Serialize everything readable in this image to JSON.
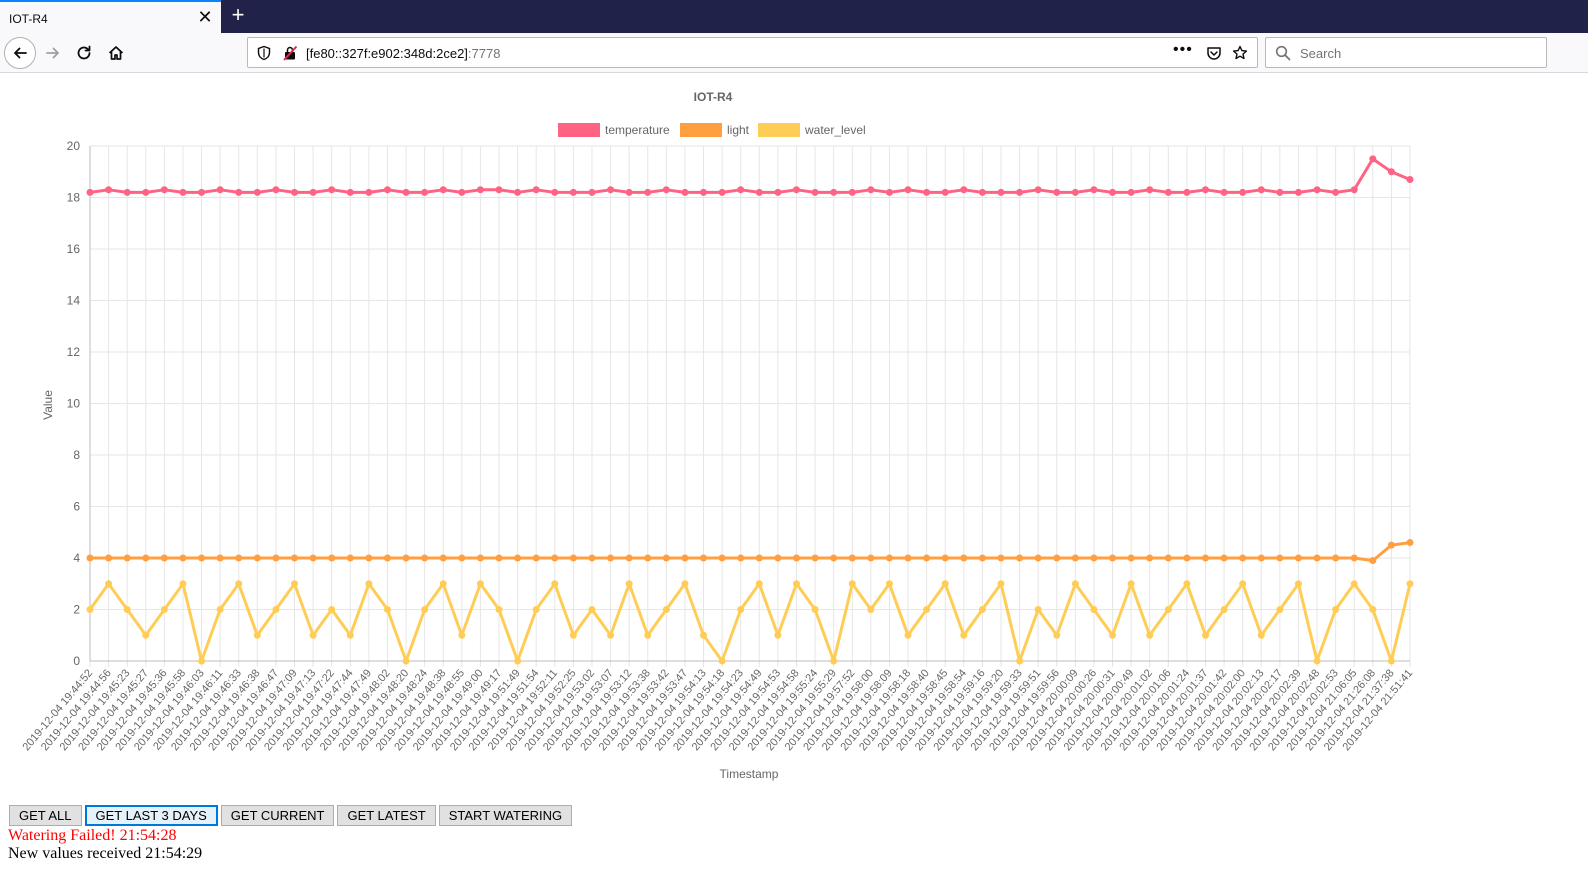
{
  "browser": {
    "tab_title": "IOT-R4",
    "tab_close": "✕",
    "new_tab": "+",
    "url_host": "[fe80::327f:e902:348d:2ce2]",
    "url_port": ":7778",
    "url_more": "•••",
    "search_placeholder": "Search"
  },
  "colors": {
    "temperature": "#ff6384",
    "light": "#ff9f40",
    "water_level": "#ffcd56"
  },
  "buttons": {
    "get_all": "GET ALL",
    "get_last_3_days": "GET LAST 3 DAYS",
    "get_current": "GET CURRENT",
    "get_latest": "GET LATEST",
    "start_watering": "START WATERING"
  },
  "status": {
    "watering": "Watering Failed! 21:54:28",
    "values": "New values received 21:54:29"
  },
  "chart_data": {
    "type": "line",
    "title": "IOT-R4",
    "xlabel": "Timestamp",
    "ylabel": "Value",
    "ylim": [
      0,
      20
    ],
    "y_ticks": [
      0,
      2,
      4,
      6,
      8,
      10,
      12,
      14,
      16,
      18,
      20
    ],
    "grid": true,
    "legend_position": "top-center",
    "categories": [
      "2019-12-04 19:44:52",
      "2019-12-04 19:44:56",
      "2019-12-04 19:45:23",
      "2019-12-04 19:45:27",
      "2019-12-04 19:45:36",
      "2019-12-04 19:45:58",
      "2019-12-04 19:46:03",
      "2019-12-04 19:46:11",
      "2019-12-04 19:46:33",
      "2019-12-04 19:46:38",
      "2019-12-04 19:46:47",
      "2019-12-04 19:47:09",
      "2019-12-04 19:47:13",
      "2019-12-04 19:47:22",
      "2019-12-04 19:47:44",
      "2019-12-04 19:47:49",
      "2019-12-04 19:48:02",
      "2019-12-04 19:48:20",
      "2019-12-04 19:48:24",
      "2019-12-04 19:48:38",
      "2019-12-04 19:48:55",
      "2019-12-04 19:49:00",
      "2019-12-04 19:49:17",
      "2019-12-04 19:51:49",
      "2019-12-04 19:51:54",
      "2019-12-04 19:52:11",
      "2019-12-04 19:52:25",
      "2019-12-04 19:53:02",
      "2019-12-04 19:53:07",
      "2019-12-04 19:53:12",
      "2019-12-04 19:53:38",
      "2019-12-04 19:53:42",
      "2019-12-04 19:53:47",
      "2019-12-04 19:54:13",
      "2019-12-04 19:54:18",
      "2019-12-04 19:54:23",
      "2019-12-04 19:54:49",
      "2019-12-04 19:54:53",
      "2019-12-04 19:54:58",
      "2019-12-04 19:55:24",
      "2019-12-04 19:55:29",
      "2019-12-04 19:57:52",
      "2019-12-04 19:58:00",
      "2019-12-04 19:58:09",
      "2019-12-04 19:58:18",
      "2019-12-04 19:58:40",
      "2019-12-04 19:58:45",
      "2019-12-04 19:58:54",
      "2019-12-04 19:59:16",
      "2019-12-04 19:59:20",
      "2019-12-04 19:59:33",
      "2019-12-04 19:59:51",
      "2019-12-04 19:59:56",
      "2019-12-04 20:00:09",
      "2019-12-04 20:00:26",
      "2019-12-04 20:00:31",
      "2019-12-04 20:00:49",
      "2019-12-04 20:01:02",
      "2019-12-04 20:01:06",
      "2019-12-04 20:01:24",
      "2019-12-04 20:01:37",
      "2019-12-04 20:01:42",
      "2019-12-04 20:02:00",
      "2019-12-04 20:02:13",
      "2019-12-04 20:02:17",
      "2019-12-04 20:02:39",
      "2019-12-04 20:02:48",
      "2019-12-04 20:02:53",
      "2019-12-04 21:06:05",
      "2019-12-04 21:26:08",
      "2019-12-04 21:37:38",
      "2019-12-04 21:51:41"
    ],
    "series": [
      {
        "name": "temperature",
        "values": [
          18.2,
          18.3,
          18.2,
          18.2,
          18.3,
          18.2,
          18.2,
          18.3,
          18.2,
          18.2,
          18.3,
          18.2,
          18.2,
          18.3,
          18.2,
          18.2,
          18.3,
          18.2,
          18.2,
          18.3,
          18.2,
          18.3,
          18.3,
          18.2,
          18.3,
          18.2,
          18.2,
          18.2,
          18.3,
          18.2,
          18.2,
          18.3,
          18.2,
          18.2,
          18.2,
          18.3,
          18.2,
          18.2,
          18.3,
          18.2,
          18.2,
          18.2,
          18.3,
          18.2,
          18.3,
          18.2,
          18.2,
          18.3,
          18.2,
          18.2,
          18.2,
          18.3,
          18.2,
          18.2,
          18.3,
          18.2,
          18.2,
          18.3,
          18.2,
          18.2,
          18.3,
          18.2,
          18.2,
          18.3,
          18.2,
          18.2,
          18.3,
          18.2,
          18.3,
          19.5,
          19.0,
          18.7
        ]
      },
      {
        "name": "light",
        "values": [
          4.0,
          4.0,
          4.0,
          4.0,
          4.0,
          4.0,
          4.0,
          4.0,
          4.0,
          4.0,
          4.0,
          4.0,
          4.0,
          4.0,
          4.0,
          4.0,
          4.0,
          4.0,
          4.0,
          4.0,
          4.0,
          4.0,
          4.0,
          4.0,
          4.0,
          4.0,
          4.0,
          4.0,
          4.0,
          4.0,
          4.0,
          4.0,
          4.0,
          4.0,
          4.0,
          4.0,
          4.0,
          4.0,
          4.0,
          4.0,
          4.0,
          4.0,
          4.0,
          4.0,
          4.0,
          4.0,
          4.0,
          4.0,
          4.0,
          4.0,
          4.0,
          4.0,
          4.0,
          4.0,
          4.0,
          4.0,
          4.0,
          4.0,
          4.0,
          4.0,
          4.0,
          4.0,
          4.0,
          4.0,
          4.0,
          4.0,
          4.0,
          4.0,
          4.0,
          3.9,
          4.5,
          4.6
        ]
      },
      {
        "name": "water_level",
        "values": [
          2,
          3,
          2,
          1,
          2,
          3,
          0,
          2,
          3,
          1,
          2,
          3,
          1,
          2,
          1,
          3,
          2,
          0,
          2,
          3,
          1,
          3,
          2,
          0,
          2,
          3,
          1,
          2,
          1,
          3,
          1,
          2,
          3,
          1,
          0,
          2,
          3,
          1,
          3,
          2,
          0,
          3,
          2,
          3,
          1,
          2,
          3,
          1,
          2,
          3,
          0,
          2,
          1,
          3,
          2,
          1,
          3,
          1,
          2,
          3,
          1,
          2,
          3,
          1,
          2,
          3,
          0,
          2,
          3,
          2,
          0,
          3
        ]
      }
    ]
  }
}
